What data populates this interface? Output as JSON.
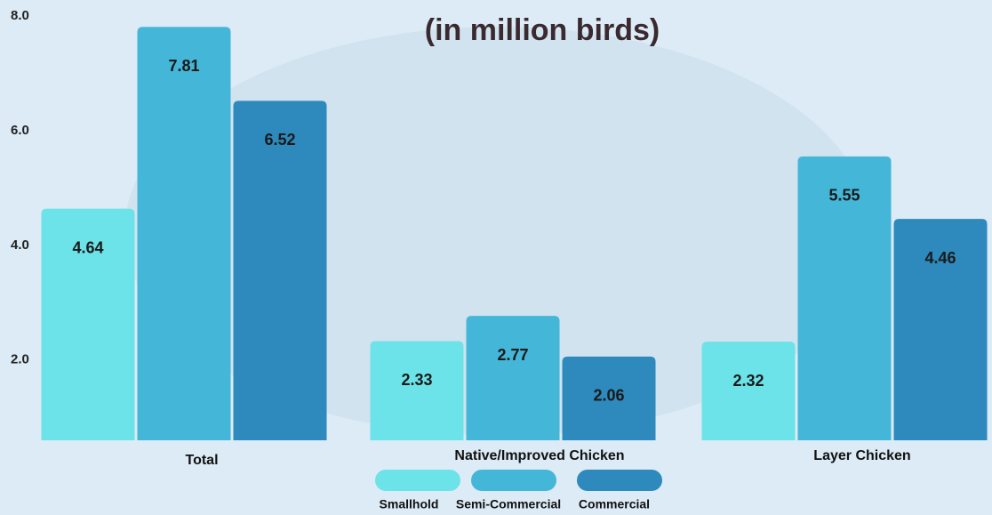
{
  "chart_data": {
    "type": "bar",
    "title": "(in million birds)",
    "categories": [
      "Total",
      "Native/Improved Chicken",
      "Layer Chicken"
    ],
    "series": [
      {
        "name": "Smallhold",
        "color": "#6ce3e8",
        "values": [
          4.64,
          2.33,
          2.32
        ]
      },
      {
        "name": "Semi-Commercial",
        "color": "#44b6d7",
        "values": [
          7.81,
          2.77,
          5.55
        ]
      },
      {
        "name": "Commercial",
        "color": "#2e89bc",
        "values": [
          6.52,
          2.06,
          4.46
        ]
      }
    ],
    "ylim": [
      0.6,
      8
    ],
    "yticks": [
      {
        "value": 2,
        "label": "2.0"
      },
      {
        "value": 4,
        "label": "4.0"
      },
      {
        "value": 6,
        "label": "6.0"
      },
      {
        "value": 8,
        "label": "8.0"
      }
    ],
    "grid": false,
    "legend": "bottom"
  }
}
